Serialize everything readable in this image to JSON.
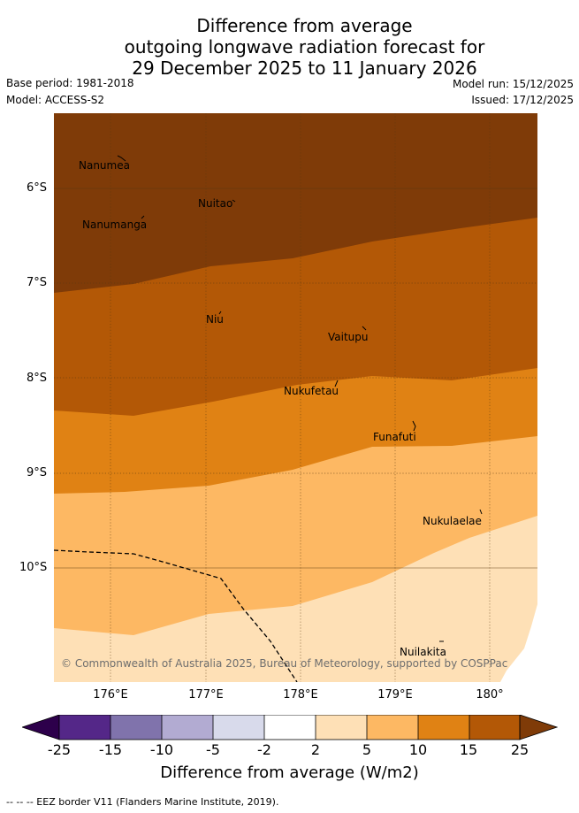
{
  "header": {
    "title_line1": "Difference from average",
    "title_line2": "outgoing longwave radiation forecast for",
    "title_line3": "29 December 2025 to 11 January 2026",
    "base_period": "Base period: 1981-2018",
    "model": "Model: ACCESS-S2",
    "model_run": "Model run: 15/12/2025",
    "issued": "Issued: 17/12/2025"
  },
  "map": {
    "lat_labels": [
      "6°S",
      "7°S",
      "8°S",
      "9°S",
      "10°S"
    ],
    "lon_labels": [
      "176°E",
      "177°E",
      "178°E",
      "179°E",
      "180°"
    ],
    "places": [
      "Nanumea",
      "Nuitao",
      "Nanumanga",
      "Niu",
      "Vaitupu",
      "Nukufetau",
      "Funafuti",
      "Nukulaelae",
      "Nuilakita"
    ],
    "copyright": "© Commonwealth of Australia 2025, Bureau of Meteorology, supported by COSPPac",
    "fill_colors": {
      "above_25": "#7f3b08",
      "15_25": "#b35806",
      "10_15": "#e08214",
      "5_10": "#fdb863",
      "2_5": "#fee0b6"
    }
  },
  "colorbar": {
    "tick_labels": [
      "-25",
      "-15",
      "-10",
      "-5",
      "-2",
      "2",
      "5",
      "10",
      "15",
      "25"
    ],
    "colors": [
      "#2d004b",
      "#542788",
      "#8073ac",
      "#b2abd2",
      "#d8daeb",
      "#ffffff",
      "#fee0b6",
      "#fdb863",
      "#e08214",
      "#b35806",
      "#7f3b08"
    ],
    "title": "Difference from average (W/m2)"
  },
  "footnote": "--  --  -- EEZ border V11 (Flanders Marine Institute, 2019)."
}
